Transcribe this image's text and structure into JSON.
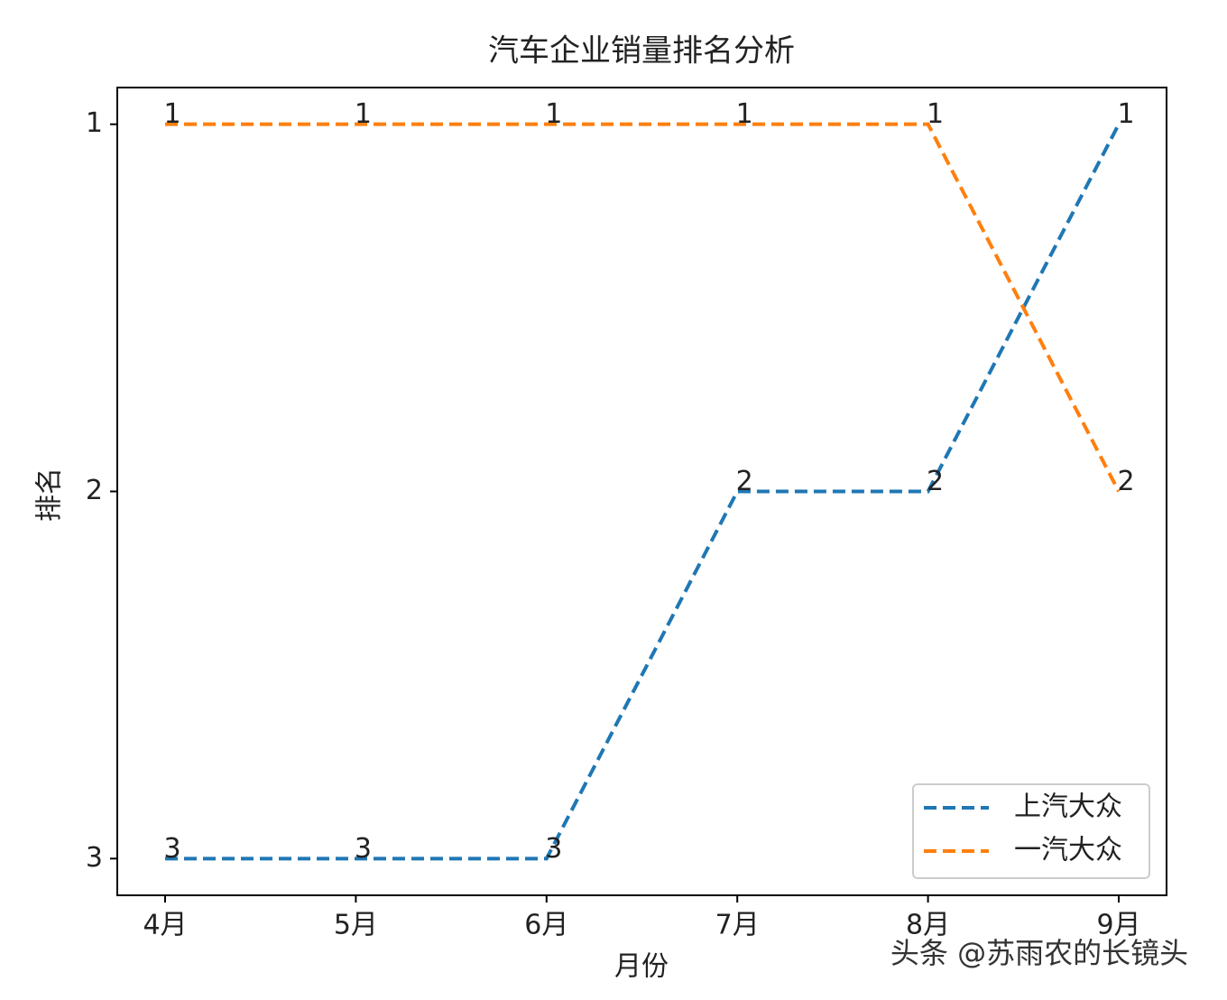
{
  "chart_data": {
    "type": "line",
    "title": "汽车企业销量排名分析",
    "x_label": "月份",
    "y_label": "排名",
    "categories": [
      "4月",
      "5月",
      "6月",
      "7月",
      "8月",
      "9月"
    ],
    "series": [
      {
        "name": "上汽大众",
        "color": "#1f77b4",
        "values": [
          3,
          3,
          3,
          2,
          2,
          1
        ]
      },
      {
        "name": "一汽大众",
        "color": "#ff7f0e",
        "values": [
          1,
          1,
          1,
          1,
          1,
          2
        ]
      }
    ],
    "ylim": [
      3.1,
      0.9
    ],
    "yticks": [
      1,
      2,
      3
    ],
    "line_style": "dashed",
    "data_labels": true,
    "legend": "lower right",
    "grid": false,
    "watermark": "头条 @苏雨农的长镜头"
  }
}
